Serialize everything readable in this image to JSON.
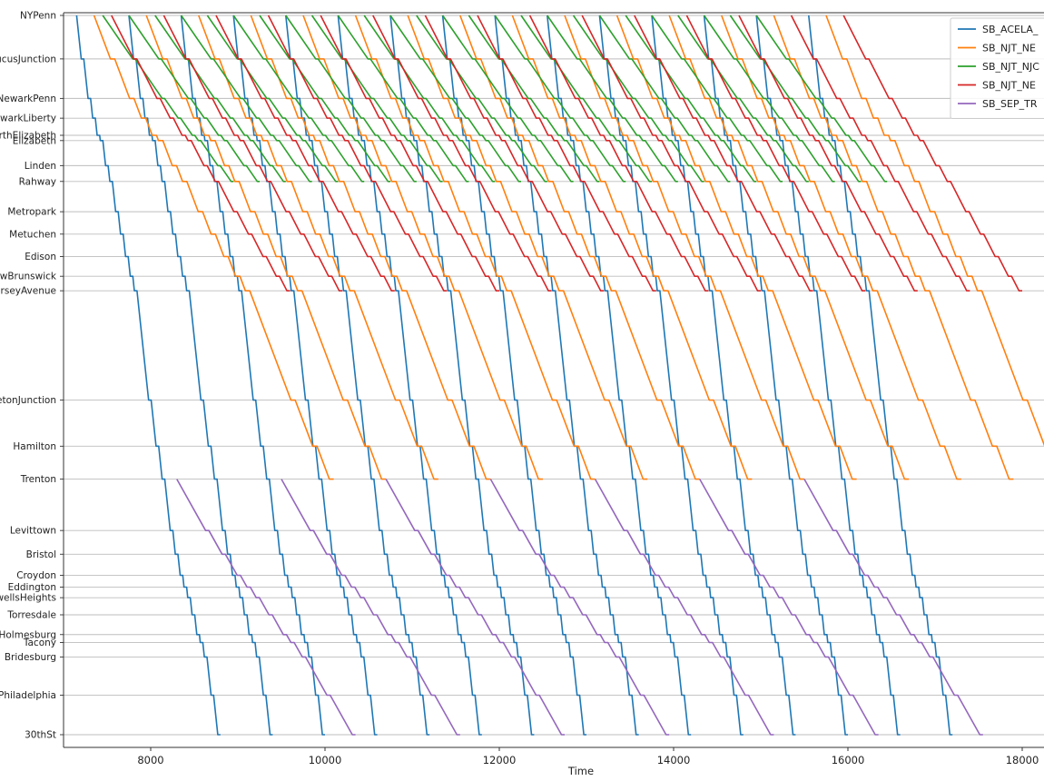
{
  "chart_data": {
    "type": "line",
    "title": "",
    "xlabel": "Time",
    "ylabel": "",
    "xlim": [
      7000,
      18250
    ],
    "x_ticks": [
      8000,
      10000,
      12000,
      14000,
      16000,
      18000
    ],
    "grid": "horizontal lines at each station",
    "legend_position": "top-right",
    "stations": [
      {
        "name": "NYPenn",
        "pos": 0.0
      },
      {
        "name": "SecaucusJunction",
        "pos": 3.3
      },
      {
        "name": "NewarkPenn",
        "pos": 6.3
      },
      {
        "name": "NewarkLiberty",
        "pos": 7.8
      },
      {
        "name": "NorthElizabeth",
        "pos": 9.1
      },
      {
        "name": "Elizabeth",
        "pos": 9.5
      },
      {
        "name": "Linden",
        "pos": 11.4
      },
      {
        "name": "Rahway",
        "pos": 12.6
      },
      {
        "name": "Metropark",
        "pos": 14.9
      },
      {
        "name": "Metuchen",
        "pos": 16.6
      },
      {
        "name": "Edison",
        "pos": 18.3
      },
      {
        "name": "NewBrunswick",
        "pos": 19.8
      },
      {
        "name": "JerseyAvenue",
        "pos": 20.9
      },
      {
        "name": "PrincetonJunction",
        "pos": 29.2
      },
      {
        "name": "Hamilton",
        "pos": 32.7
      },
      {
        "name": "Trenton",
        "pos": 35.2
      },
      {
        "name": "Levittown",
        "pos": 39.1
      },
      {
        "name": "Bristol",
        "pos": 40.9
      },
      {
        "name": "Croydon",
        "pos": 42.5
      },
      {
        "name": "Eddington",
        "pos": 43.4
      },
      {
        "name": "CornwellsHeights",
        "pos": 44.2
      },
      {
        "name": "Torresdale",
        "pos": 45.5
      },
      {
        "name": "Holmesburg",
        "pos": 47.0
      },
      {
        "name": "Tacony",
        "pos": 47.6
      },
      {
        "name": "Bridesburg",
        "pos": 48.7
      },
      {
        "name": "NorthPhiladelphia",
        "pos": 51.6
      },
      {
        "name": "30thSt",
        "pos": 54.6
      }
    ],
    "series": [
      {
        "name": "SB_ACELA_",
        "color": "#1f77b4",
        "from": "NYPenn",
        "to": "30thSt",
        "departures": [
          7150,
          7750,
          8350,
          8950,
          9550,
          10150,
          10750,
          11350,
          11950,
          12550,
          13150,
          13750,
          14350,
          14950,
          15550
        ],
        "duration": 1650
      },
      {
        "name": "SB_NJT_NE",
        "color": "#ff7f0e",
        "from": "NYPenn",
        "to": "Trenton",
        "departures": [
          7350,
          7950,
          8550,
          9150,
          9750,
          10350,
          10950,
          11550,
          12150,
          12750,
          13350,
          13950,
          14550,
          15150,
          15750
        ],
        "duration": 2750
      },
      {
        "name": "SB_NJT_NJC",
        "color": "#2ca02c",
        "from": "NYPenn",
        "to": "Rahway",
        "departures": [
          7450,
          7750,
          8050,
          8350,
          8650,
          8950,
          9250,
          9550,
          9850,
          10150,
          10450,
          10750,
          11050,
          11350,
          11650,
          11950,
          12250,
          12550,
          12850,
          13150,
          13450,
          13750,
          14050,
          14350,
          14650,
          14950
        ],
        "duration": 1500
      },
      {
        "name": "SB_NJT_NE",
        "color": "#d62728",
        "from": "NYPenn",
        "to": "JerseyAvenue",
        "departures": [
          7550,
          8150,
          8750,
          9350,
          9950,
          10550,
          11150,
          11750,
          12350,
          12950,
          13550,
          14150,
          14750,
          15350,
          15950
        ],
        "duration": 2050
      },
      {
        "name": "SB_SEP_TR",
        "color": "#9467bd",
        "from": "Trenton",
        "to": "30thSt",
        "departures": [
          8300,
          9500,
          10700,
          11900,
          13100,
          14300,
          15500
        ],
        "duration": 2050
      }
    ]
  }
}
